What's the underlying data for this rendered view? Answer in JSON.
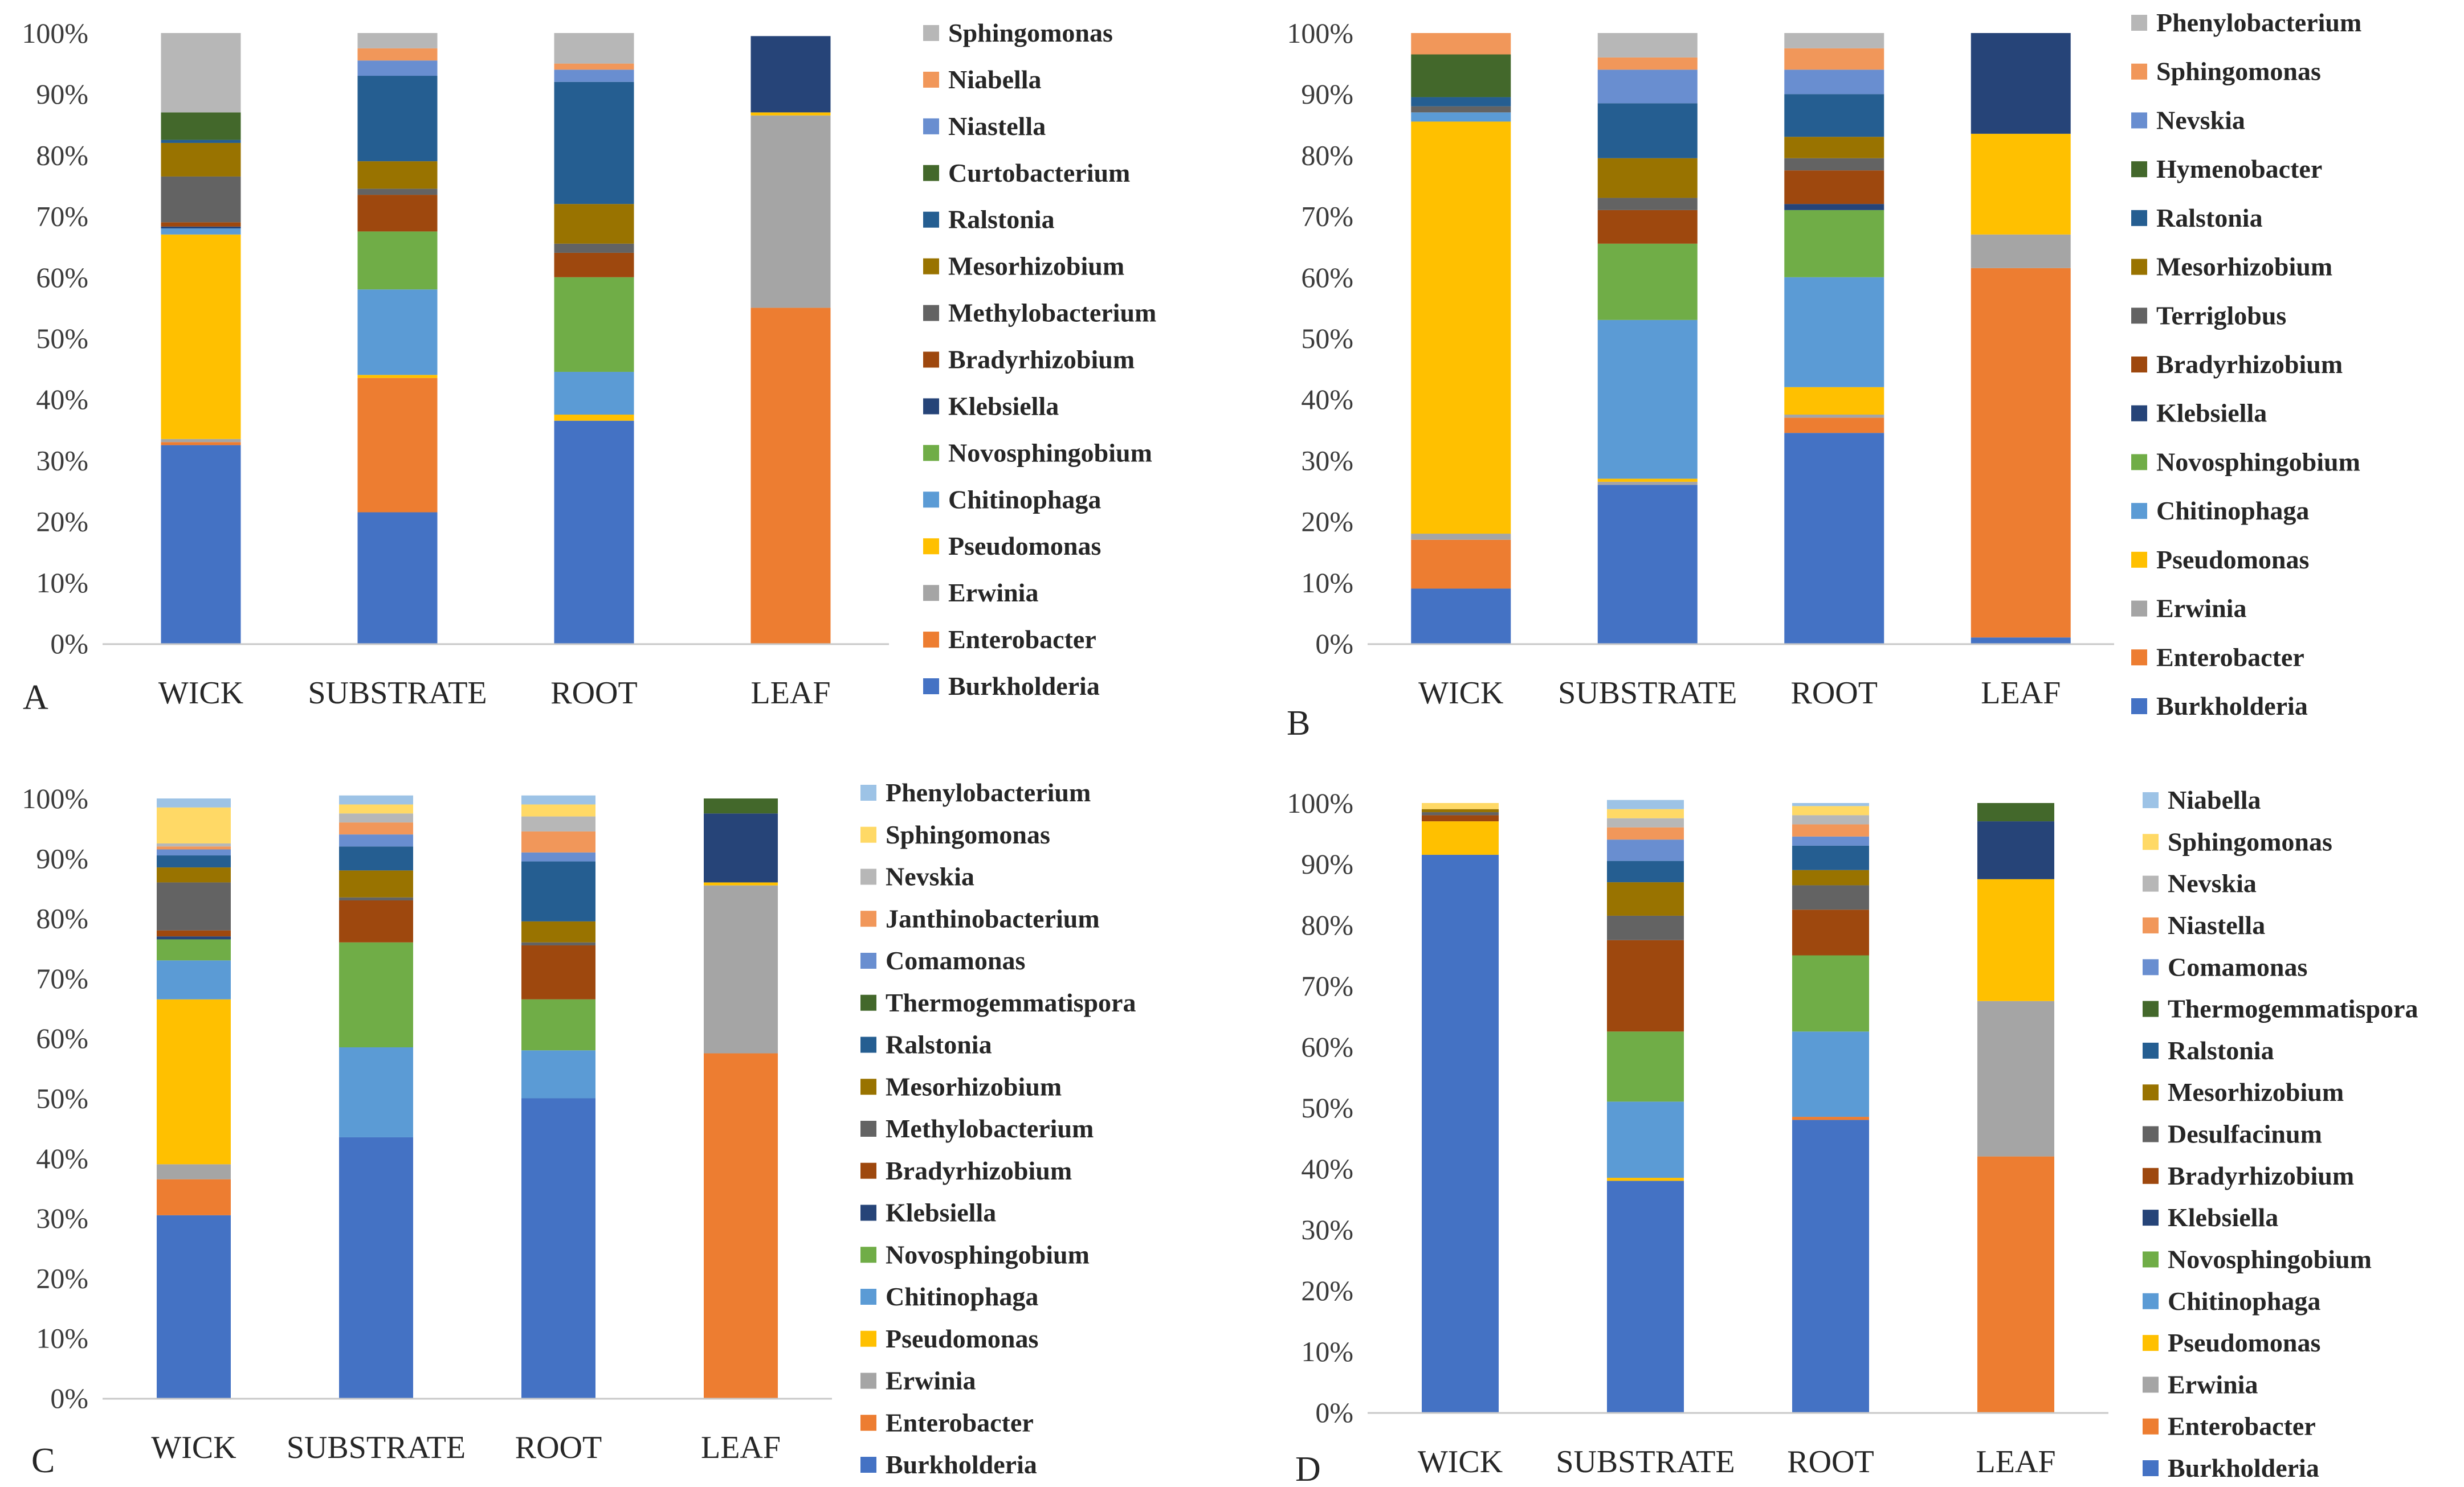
{
  "chart_data": [
    {
      "type": "bar",
      "stacked": true,
      "panel_label": "A",
      "categories": [
        "WICK",
        "SUBSTRATE",
        "ROOT",
        "LEAF"
      ],
      "ylim": [
        0,
        100
      ],
      "yticks": [
        "0%",
        "10%",
        "20%",
        "30%",
        "40%",
        "50%",
        "60%",
        "70%",
        "80%",
        "90%",
        "100%"
      ],
      "series": [
        {
          "name": "Burkholderia",
          "color": "#4472C4",
          "values": [
            32.5,
            21.5,
            36.5,
            0
          ]
        },
        {
          "name": "Enterobacter",
          "color": "#ED7D31",
          "values": [
            0.5,
            22,
            0,
            55
          ]
        },
        {
          "name": "Erwinia",
          "color": "#A5A5A5",
          "values": [
            0.5,
            0,
            0,
            31.5
          ]
        },
        {
          "name": "Pseudomonas",
          "color": "#FFC000",
          "values": [
            33.5,
            0.5,
            1,
            0.5
          ]
        },
        {
          "name": "Chitinophaga",
          "color": "#5B9BD5",
          "values": [
            1,
            14,
            7,
            0
          ]
        },
        {
          "name": "Novosphingobium",
          "color": "#70AD47",
          "values": [
            0,
            9.5,
            15.5,
            0
          ]
        },
        {
          "name": "Klebsiella",
          "color": "#264478",
          "values": [
            0.3,
            0,
            0,
            12.5
          ]
        },
        {
          "name": "Bradyrhizobium",
          "color": "#9E480E",
          "values": [
            0.7,
            6,
            4,
            0
          ]
        },
        {
          "name": "Methylobacterium",
          "color": "#636363",
          "values": [
            7.5,
            1,
            1.5,
            0
          ]
        },
        {
          "name": "Mesorhizobium",
          "color": "#997300",
          "values": [
            5.5,
            4.5,
            6.5,
            0
          ]
        },
        {
          "name": "Ralstonia",
          "color": "#255E91",
          "values": [
            0.5,
            14,
            20,
            0
          ]
        },
        {
          "name": "Curtobacterium",
          "color": "#43682B",
          "values": [
            4.5,
            0,
            0,
            0
          ]
        },
        {
          "name": "Niastella",
          "color": "#698ED0",
          "values": [
            0,
            2.5,
            2,
            0
          ]
        },
        {
          "name": "Niabella",
          "color": "#F1975A",
          "values": [
            0,
            2,
            1,
            0
          ]
        },
        {
          "name": "Sphingomonas",
          "color": "#B7B7B7",
          "values": [
            13,
            2.5,
            5,
            0
          ]
        }
      ]
    },
    {
      "type": "bar",
      "stacked": true,
      "panel_label": "B",
      "categories": [
        "WICK",
        "SUBSTRATE",
        "ROOT",
        "LEAF"
      ],
      "ylim": [
        0,
        100
      ],
      "yticks": [
        "0%",
        "10%",
        "20%",
        "30%",
        "40%",
        "50%",
        "60%",
        "70%",
        "80%",
        "90%",
        "100%"
      ],
      "series": [
        {
          "name": "Burkholderia",
          "color": "#4472C4",
          "values": [
            9,
            26,
            34.5,
            1
          ]
        },
        {
          "name": "Enterobacter",
          "color": "#ED7D31",
          "values": [
            8,
            0,
            2.5,
            60.5
          ]
        },
        {
          "name": "Erwinia",
          "color": "#A5A5A5",
          "values": [
            1,
            0.5,
            0.5,
            5.5
          ]
        },
        {
          "name": "Pseudomonas",
          "color": "#FFC000",
          "values": [
            67.5,
            0.5,
            4.5,
            16.5
          ]
        },
        {
          "name": "Chitinophaga",
          "color": "#5B9BD5",
          "values": [
            1.5,
            26,
            18,
            0
          ]
        },
        {
          "name": "Novosphingobium",
          "color": "#70AD47",
          "values": [
            0,
            12.5,
            11,
            0
          ]
        },
        {
          "name": "Klebsiella",
          "color": "#264478",
          "values": [
            0,
            0,
            1,
            16.5
          ]
        },
        {
          "name": "Bradyrhizobium",
          "color": "#9E480E",
          "values": [
            0,
            5.5,
            5.5,
            0
          ]
        },
        {
          "name": "Terriglobus",
          "color": "#636363",
          "values": [
            1,
            2,
            2,
            0
          ]
        },
        {
          "name": "Mesorhizobium",
          "color": "#997300",
          "values": [
            0,
            6.5,
            3.5,
            0
          ]
        },
        {
          "name": "Ralstonia",
          "color": "#255E91",
          "values": [
            1.5,
            9,
            7,
            0
          ]
        },
        {
          "name": "Hymenobacter",
          "color": "#43682B",
          "values": [
            7,
            0,
            0,
            0
          ]
        },
        {
          "name": "Nevskia",
          "color": "#698ED0",
          "values": [
            0,
            5.5,
            4,
            0
          ]
        },
        {
          "name": "Sphingomonas",
          "color": "#F1975A",
          "values": [
            3.5,
            2,
            3.5,
            0
          ]
        },
        {
          "name": "Phenylobacterium",
          "color": "#B7B7B7",
          "values": [
            0,
            4,
            2.5,
            0
          ]
        }
      ]
    },
    {
      "type": "bar",
      "stacked": true,
      "panel_label": "C",
      "categories": [
        "WICK",
        "SUBSTRATE",
        "ROOT",
        "LEAF"
      ],
      "ylim": [
        0,
        100
      ],
      "yticks": [
        "0%",
        "10%",
        "20%",
        "30%",
        "40%",
        "50%",
        "60%",
        "70%",
        "80%",
        "90%",
        "100%"
      ],
      "series": [
        {
          "name": "Burkholderia",
          "color": "#4472C4",
          "values": [
            30.5,
            43.5,
            50,
            0
          ]
        },
        {
          "name": "Enterobacter",
          "color": "#ED7D31",
          "values": [
            6,
            0,
            0,
            57.5
          ]
        },
        {
          "name": "Erwinia",
          "color": "#A5A5A5",
          "values": [
            2.5,
            0,
            0,
            28
          ]
        },
        {
          "name": "Pseudomonas",
          "color": "#FFC000",
          "values": [
            27.5,
            0,
            0,
            0.5
          ]
        },
        {
          "name": "Chitinophaga",
          "color": "#5B9BD5",
          "values": [
            6.5,
            15,
            8,
            0
          ]
        },
        {
          "name": "Novosphingobium",
          "color": "#70AD47",
          "values": [
            3.5,
            17.5,
            8.5,
            0
          ]
        },
        {
          "name": "Klebsiella",
          "color": "#264478",
          "values": [
            0.5,
            0,
            0,
            11.5
          ]
        },
        {
          "name": "Bradyrhizobium",
          "color": "#9E480E",
          "values": [
            1,
            7,
            9,
            0
          ]
        },
        {
          "name": "Methylobacterium",
          "color": "#636363",
          "values": [
            8,
            0.5,
            0.5,
            0
          ]
        },
        {
          "name": "Mesorhizobium",
          "color": "#997300",
          "values": [
            2.5,
            4.5,
            3.5,
            0
          ]
        },
        {
          "name": "Ralstonia",
          "color": "#255E91",
          "values": [
            2,
            4,
            10,
            0
          ]
        },
        {
          "name": "Thermogemmatispora",
          "color": "#43682B",
          "values": [
            0,
            0,
            0,
            2.5
          ]
        },
        {
          "name": "Comamonas",
          "color": "#698ED0",
          "values": [
            1,
            2,
            1.5,
            0
          ]
        },
        {
          "name": "Janthinobacterium",
          "color": "#F1975A",
          "values": [
            0.5,
            2,
            3.5,
            0
          ]
        },
        {
          "name": "Nevskia",
          "color": "#B7B7B7",
          "values": [
            0.5,
            1.5,
            2.5,
            0
          ]
        },
        {
          "name": "Sphingomonas",
          "color": "#FFD966",
          "values": [
            6,
            1.5,
            2,
            0
          ]
        },
        {
          "name": "Phenylobacterium",
          "color": "#9DC3E6",
          "values": [
            1.5,
            1.5,
            1.5,
            0
          ]
        }
      ]
    },
    {
      "type": "bar",
      "stacked": true,
      "panel_label": "D",
      "categories": [
        "WICK",
        "SUBSTRATE",
        "ROOT",
        "LEAF"
      ],
      "ylim": [
        0,
        100
      ],
      "yticks": [
        "0%",
        "10%",
        "20%",
        "30%",
        "40%",
        "50%",
        "60%",
        "70%",
        "80%",
        "90%",
        "100%"
      ],
      "series": [
        {
          "name": "Burkholderia",
          "color": "#4472C4",
          "values": [
            91.5,
            38,
            48,
            0
          ]
        },
        {
          "name": "Enterobacter",
          "color": "#ED7D31",
          "values": [
            0,
            0,
            0.5,
            42
          ]
        },
        {
          "name": "Erwinia",
          "color": "#A5A5A5",
          "values": [
            0,
            0,
            0,
            25.5
          ]
        },
        {
          "name": "Pseudomonas",
          "color": "#FFC000",
          "values": [
            5.5,
            0.5,
            0,
            20
          ]
        },
        {
          "name": "Chitinophaga",
          "color": "#5B9BD5",
          "values": [
            0,
            12.5,
            14,
            0
          ]
        },
        {
          "name": "Novosphingobium",
          "color": "#70AD47",
          "values": [
            0,
            11.5,
            12.5,
            0
          ]
        },
        {
          "name": "Klebsiella",
          "color": "#264478",
          "values": [
            0,
            0,
            0,
            9.5
          ]
        },
        {
          "name": "Bradyrhizobium",
          "color": "#9E480E",
          "values": [
            1,
            15,
            7.5,
            0
          ]
        },
        {
          "name": "Desulfacinum",
          "color": "#636363",
          "values": [
            0.5,
            4,
            4,
            0
          ]
        },
        {
          "name": "Mesorhizobium",
          "color": "#997300",
          "values": [
            0.5,
            5.5,
            2.5,
            0
          ]
        },
        {
          "name": "Ralstonia",
          "color": "#255E91",
          "values": [
            0,
            3.5,
            4,
            0
          ]
        },
        {
          "name": "Thermogemmatispora",
          "color": "#43682B",
          "values": [
            0,
            0,
            0,
            3
          ]
        },
        {
          "name": "Comamonas",
          "color": "#698ED0",
          "values": [
            0,
            3.5,
            1.5,
            0
          ]
        },
        {
          "name": "Niastella",
          "color": "#F1975A",
          "values": [
            0,
            2,
            2,
            0
          ]
        },
        {
          "name": "Nevskia",
          "color": "#B7B7B7",
          "values": [
            0,
            1.5,
            1.5,
            0
          ]
        },
        {
          "name": "Sphingomonas",
          "color": "#FFD966",
          "values": [
            1,
            1.5,
            1.5,
            0
          ]
        },
        {
          "name": "Niabella",
          "color": "#9DC3E6",
          "values": [
            0,
            1.5,
            0.5,
            0
          ]
        }
      ]
    }
  ]
}
